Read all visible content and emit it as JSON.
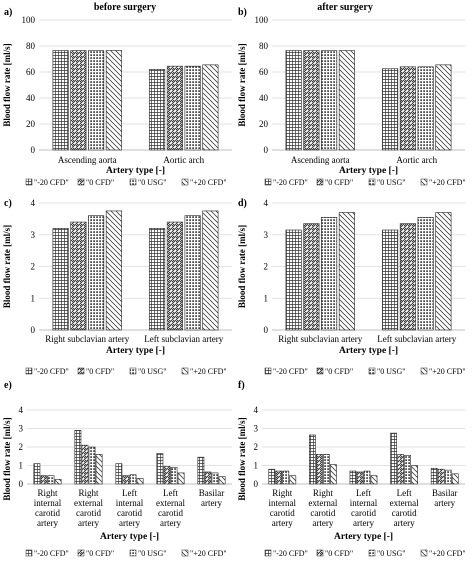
{
  "column_titles": [
    "before surgery",
    "after surgery"
  ],
  "legend_labels": [
    "\"-20 CFD\"",
    "\"0 CFD\"",
    "\"0 USG\"",
    "\"+20 CFD\""
  ],
  "chart_data": [
    {
      "panel": "a)",
      "type": "bar",
      "ylabel": "Blood flow rate [ml/s]",
      "xlabel": "Artery type [-]",
      "ylim": [
        0,
        100
      ],
      "yticks": [
        0,
        20,
        40,
        60,
        80,
        100
      ],
      "categories": [
        [
          "Ascending aorta"
        ],
        [
          "Aortic arch"
        ]
      ],
      "series": [
        {
          "name": "\"-20 CFD\"",
          "values": [
            76.5,
            62
          ]
        },
        {
          "name": "\"0 CFD\"",
          "values": [
            76.5,
            64.5
          ]
        },
        {
          "name": "\"0 USG\"",
          "values": [
            76.5,
            64.5
          ]
        },
        {
          "name": "\"+20 CFD\"",
          "values": [
            76.5,
            65.5
          ]
        }
      ]
    },
    {
      "panel": "b)",
      "type": "bar",
      "ylabel": "Blood flow rate [ml/s]",
      "xlabel": "Artery type [-]",
      "ylim": [
        0,
        100
      ],
      "yticks": [
        0,
        20,
        40,
        60,
        80,
        100
      ],
      "categories": [
        [
          "Ascending aorta"
        ],
        [
          "Aortic arch"
        ]
      ],
      "series": [
        {
          "name": "\"-20 CFD\"",
          "values": [
            76.5,
            62.5
          ]
        },
        {
          "name": "\"0 CFD\"",
          "values": [
            76.5,
            64
          ]
        },
        {
          "name": "\"0 USG\"",
          "values": [
            76.5,
            64
          ]
        },
        {
          "name": "\"+20 CFD\"",
          "values": [
            76.5,
            65.5
          ]
        }
      ]
    },
    {
      "panel": "c)",
      "type": "bar",
      "ylabel": "Blood flow rate [ml/s]",
      "xlabel": "Artery type [-]",
      "ylim": [
        0,
        4
      ],
      "yticks": [
        0,
        1,
        2,
        3,
        4
      ],
      "categories": [
        [
          "Right subclavian artery"
        ],
        [
          "Left subclavian artery"
        ]
      ],
      "series": [
        {
          "name": "\"-20 CFD\"",
          "values": [
            3.2,
            3.2
          ]
        },
        {
          "name": "\"0 CFD\"",
          "values": [
            3.4,
            3.4
          ]
        },
        {
          "name": "\"0 USG\"",
          "values": [
            3.6,
            3.6
          ]
        },
        {
          "name": "\"+20 CFD\"",
          "values": [
            3.75,
            3.75
          ]
        }
      ]
    },
    {
      "panel": "d)",
      "type": "bar",
      "ylabel": "Blood flow rate [ml/s]",
      "xlabel": "Artery type [-]",
      "ylim": [
        0,
        4
      ],
      "yticks": [
        0,
        1,
        2,
        3,
        4
      ],
      "categories": [
        [
          "Right subclavian artery"
        ],
        [
          "Left subclavian artery"
        ]
      ],
      "series": [
        {
          "name": "\"-20 CFD\"",
          "values": [
            3.15,
            3.15
          ]
        },
        {
          "name": "\"0 CFD\"",
          "values": [
            3.35,
            3.35
          ]
        },
        {
          "name": "\"0 USG\"",
          "values": [
            3.55,
            3.55
          ]
        },
        {
          "name": "\"+20 CFD\"",
          "values": [
            3.7,
            3.7
          ]
        }
      ]
    },
    {
      "panel": "e)",
      "type": "bar",
      "ylabel": "Blood flow rate [ml/s]",
      "xlabel": "Artery type [-]",
      "ylim": [
        0,
        4
      ],
      "yticks": [
        0,
        1,
        2,
        3,
        4
      ],
      "categories": [
        [
          "Right",
          "internal",
          "carotid",
          "artery"
        ],
        [
          "Right",
          "external",
          "carotid",
          "artery"
        ],
        [
          "Left",
          "internal",
          "carotid",
          "artery"
        ],
        [
          "Left",
          "external",
          "carotid",
          "artery"
        ],
        [
          "Basilar",
          "artery"
        ]
      ],
      "series": [
        {
          "name": "\"-20 CFD\"",
          "values": [
            1.1,
            2.9,
            1.1,
            1.65,
            1.45
          ]
        },
        {
          "name": "\"0 CFD\"",
          "values": [
            0.45,
            2.1,
            0.45,
            0.95,
            0.65
          ]
        },
        {
          "name": "\"0 USG\"",
          "values": [
            0.45,
            2.0,
            0.5,
            0.9,
            0.6
          ]
        },
        {
          "name": "\"+20 CFD\"",
          "values": [
            0.25,
            1.6,
            0.3,
            0.6,
            0.4
          ]
        }
      ]
    },
    {
      "panel": "f)",
      "type": "bar",
      "ylabel": "Blood flow rate [ml/s]",
      "xlabel": "Artery type [-]",
      "ylim": [
        0,
        4
      ],
      "yticks": [
        0,
        1,
        2,
        3,
        4
      ],
      "categories": [
        [
          "Right",
          "internal",
          "carotid",
          "artery"
        ],
        [
          "Right",
          "external",
          "carotid",
          "artery"
        ],
        [
          "Left",
          "internal",
          "carotid",
          "artery"
        ],
        [
          "Left",
          "external",
          "carotid",
          "artery"
        ],
        [
          "Basilar",
          "artery"
        ]
      ],
      "series": [
        {
          "name": "\"-20 CFD\"",
          "values": [
            0.8,
            2.65,
            0.7,
            2.75,
            0.85
          ]
        },
        {
          "name": "\"0 CFD\"",
          "values": [
            0.7,
            1.6,
            0.65,
            1.6,
            0.8
          ]
        },
        {
          "name": "\"0 USG\"",
          "values": [
            0.7,
            1.6,
            0.7,
            1.55,
            0.75
          ]
        },
        {
          "name": "\"+20 CFD\"",
          "values": [
            0.45,
            1.05,
            0.45,
            1.0,
            0.55
          ]
        }
      ]
    }
  ]
}
